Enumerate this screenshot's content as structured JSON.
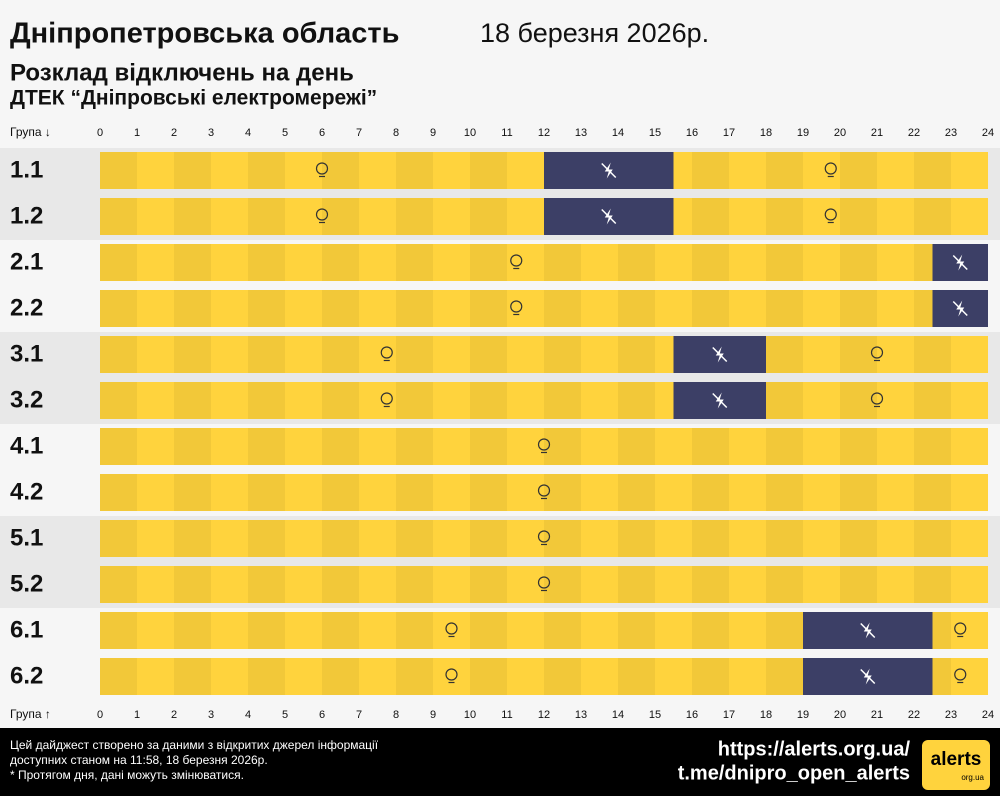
{
  "chart_data": {
    "type": "gantt",
    "title": "Дніпропетровська область",
    "date": "18 березня 2026р.",
    "subtitle": "Розклад відключень на день",
    "subtitle2": "ДТЕК “Дніпровські електромережі”",
    "y_label_top": "Група ↓",
    "y_label_bottom": "Група ↑",
    "xlim": [
      0,
      24
    ],
    "xticks": [
      0,
      1,
      2,
      3,
      4,
      5,
      6,
      7,
      8,
      9,
      10,
      11,
      12,
      13,
      14,
      15,
      16,
      17,
      18,
      19,
      20,
      21,
      22,
      23,
      24
    ],
    "on_color": "#ffd33d",
    "off_color": "#3c3f66",
    "groups": [
      {
        "name": "1.1",
        "outages": [
          [
            12,
            15.5
          ]
        ]
      },
      {
        "name": "1.2",
        "outages": [
          [
            12,
            15.5
          ]
        ]
      },
      {
        "name": "2.1",
        "outages": [
          [
            22.5,
            24
          ]
        ]
      },
      {
        "name": "2.2",
        "outages": [
          [
            22.5,
            24
          ]
        ]
      },
      {
        "name": "3.1",
        "outages": [
          [
            15.5,
            18
          ]
        ]
      },
      {
        "name": "3.2",
        "outages": [
          [
            15.5,
            18
          ]
        ]
      },
      {
        "name": "4.1",
        "outages": []
      },
      {
        "name": "4.2",
        "outages": []
      },
      {
        "name": "5.1",
        "outages": []
      },
      {
        "name": "5.2",
        "outages": []
      },
      {
        "name": "6.1",
        "outages": [
          [
            19,
            22.5
          ]
        ]
      },
      {
        "name": "6.2",
        "outages": [
          [
            19,
            22.5
          ]
        ]
      }
    ]
  },
  "footer": {
    "note_lines": [
      "Цей дайджест створено за даними з відкритих джерел інформації",
      "доступних станом на 11:58, 18 березня 2026р.",
      "* Протягом дня, дані можуть змінюватися."
    ],
    "links": [
      "https://alerts.org.ua/",
      "t.me/dnipro_open_alerts"
    ],
    "logo": "alerts",
    "logo_sub": "org.ua"
  }
}
